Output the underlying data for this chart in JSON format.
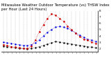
{
  "title": "Milwaukee Weather Outdoor Temperature (vs) THSW Index per Hour (Last 24 Hours)",
  "hours": [
    0,
    1,
    2,
    3,
    4,
    5,
    6,
    7,
    8,
    9,
    10,
    11,
    12,
    13,
    14,
    15,
    16,
    17,
    18,
    19,
    20,
    21,
    22,
    23
  ],
  "hour_labels": [
    ":",
    ":",
    ":",
    ":",
    ":",
    ":",
    ":",
    ":",
    ":",
    ":",
    ":",
    ":",
    ":",
    ":",
    ":",
    ":",
    ":",
    ":",
    ":",
    ":",
    ":",
    ":",
    ":",
    ":"
  ],
  "temp": [
    30,
    29,
    28,
    27,
    26,
    25,
    25,
    26,
    29,
    34,
    40,
    46,
    50,
    54,
    55,
    54,
    52,
    49,
    45,
    41,
    38,
    35,
    33,
    31
  ],
  "thsw": [
    26,
    25,
    23,
    22,
    21,
    20,
    20,
    24,
    33,
    47,
    58,
    68,
    75,
    73,
    68,
    63,
    56,
    50,
    44,
    39,
    35,
    33,
    30,
    28
  ],
  "dew": [
    24,
    23,
    22,
    21,
    20,
    20,
    19,
    20,
    21,
    23,
    25,
    27,
    29,
    31,
    30,
    29,
    28,
    27,
    26,
    25,
    24,
    23,
    22,
    21
  ],
  "ylim": [
    15,
    80
  ],
  "ytick_vals": [
    20,
    30,
    40,
    50,
    60,
    70,
    80
  ],
  "ytick_labels": [
    "2",
    "3",
    "4",
    "5",
    "6",
    "7",
    "8"
  ],
  "bg_color": "#ffffff",
  "temp_color": "#0000dd",
  "thsw_color": "#cc0000",
  "dew_color": "#000000",
  "grid_color": "#999999",
  "title_color": "#000000",
  "title_fontsize": 3.8,
  "tick_fontsize": 3.0,
  "line_lw": 0.5,
  "marker_size": 1.5
}
